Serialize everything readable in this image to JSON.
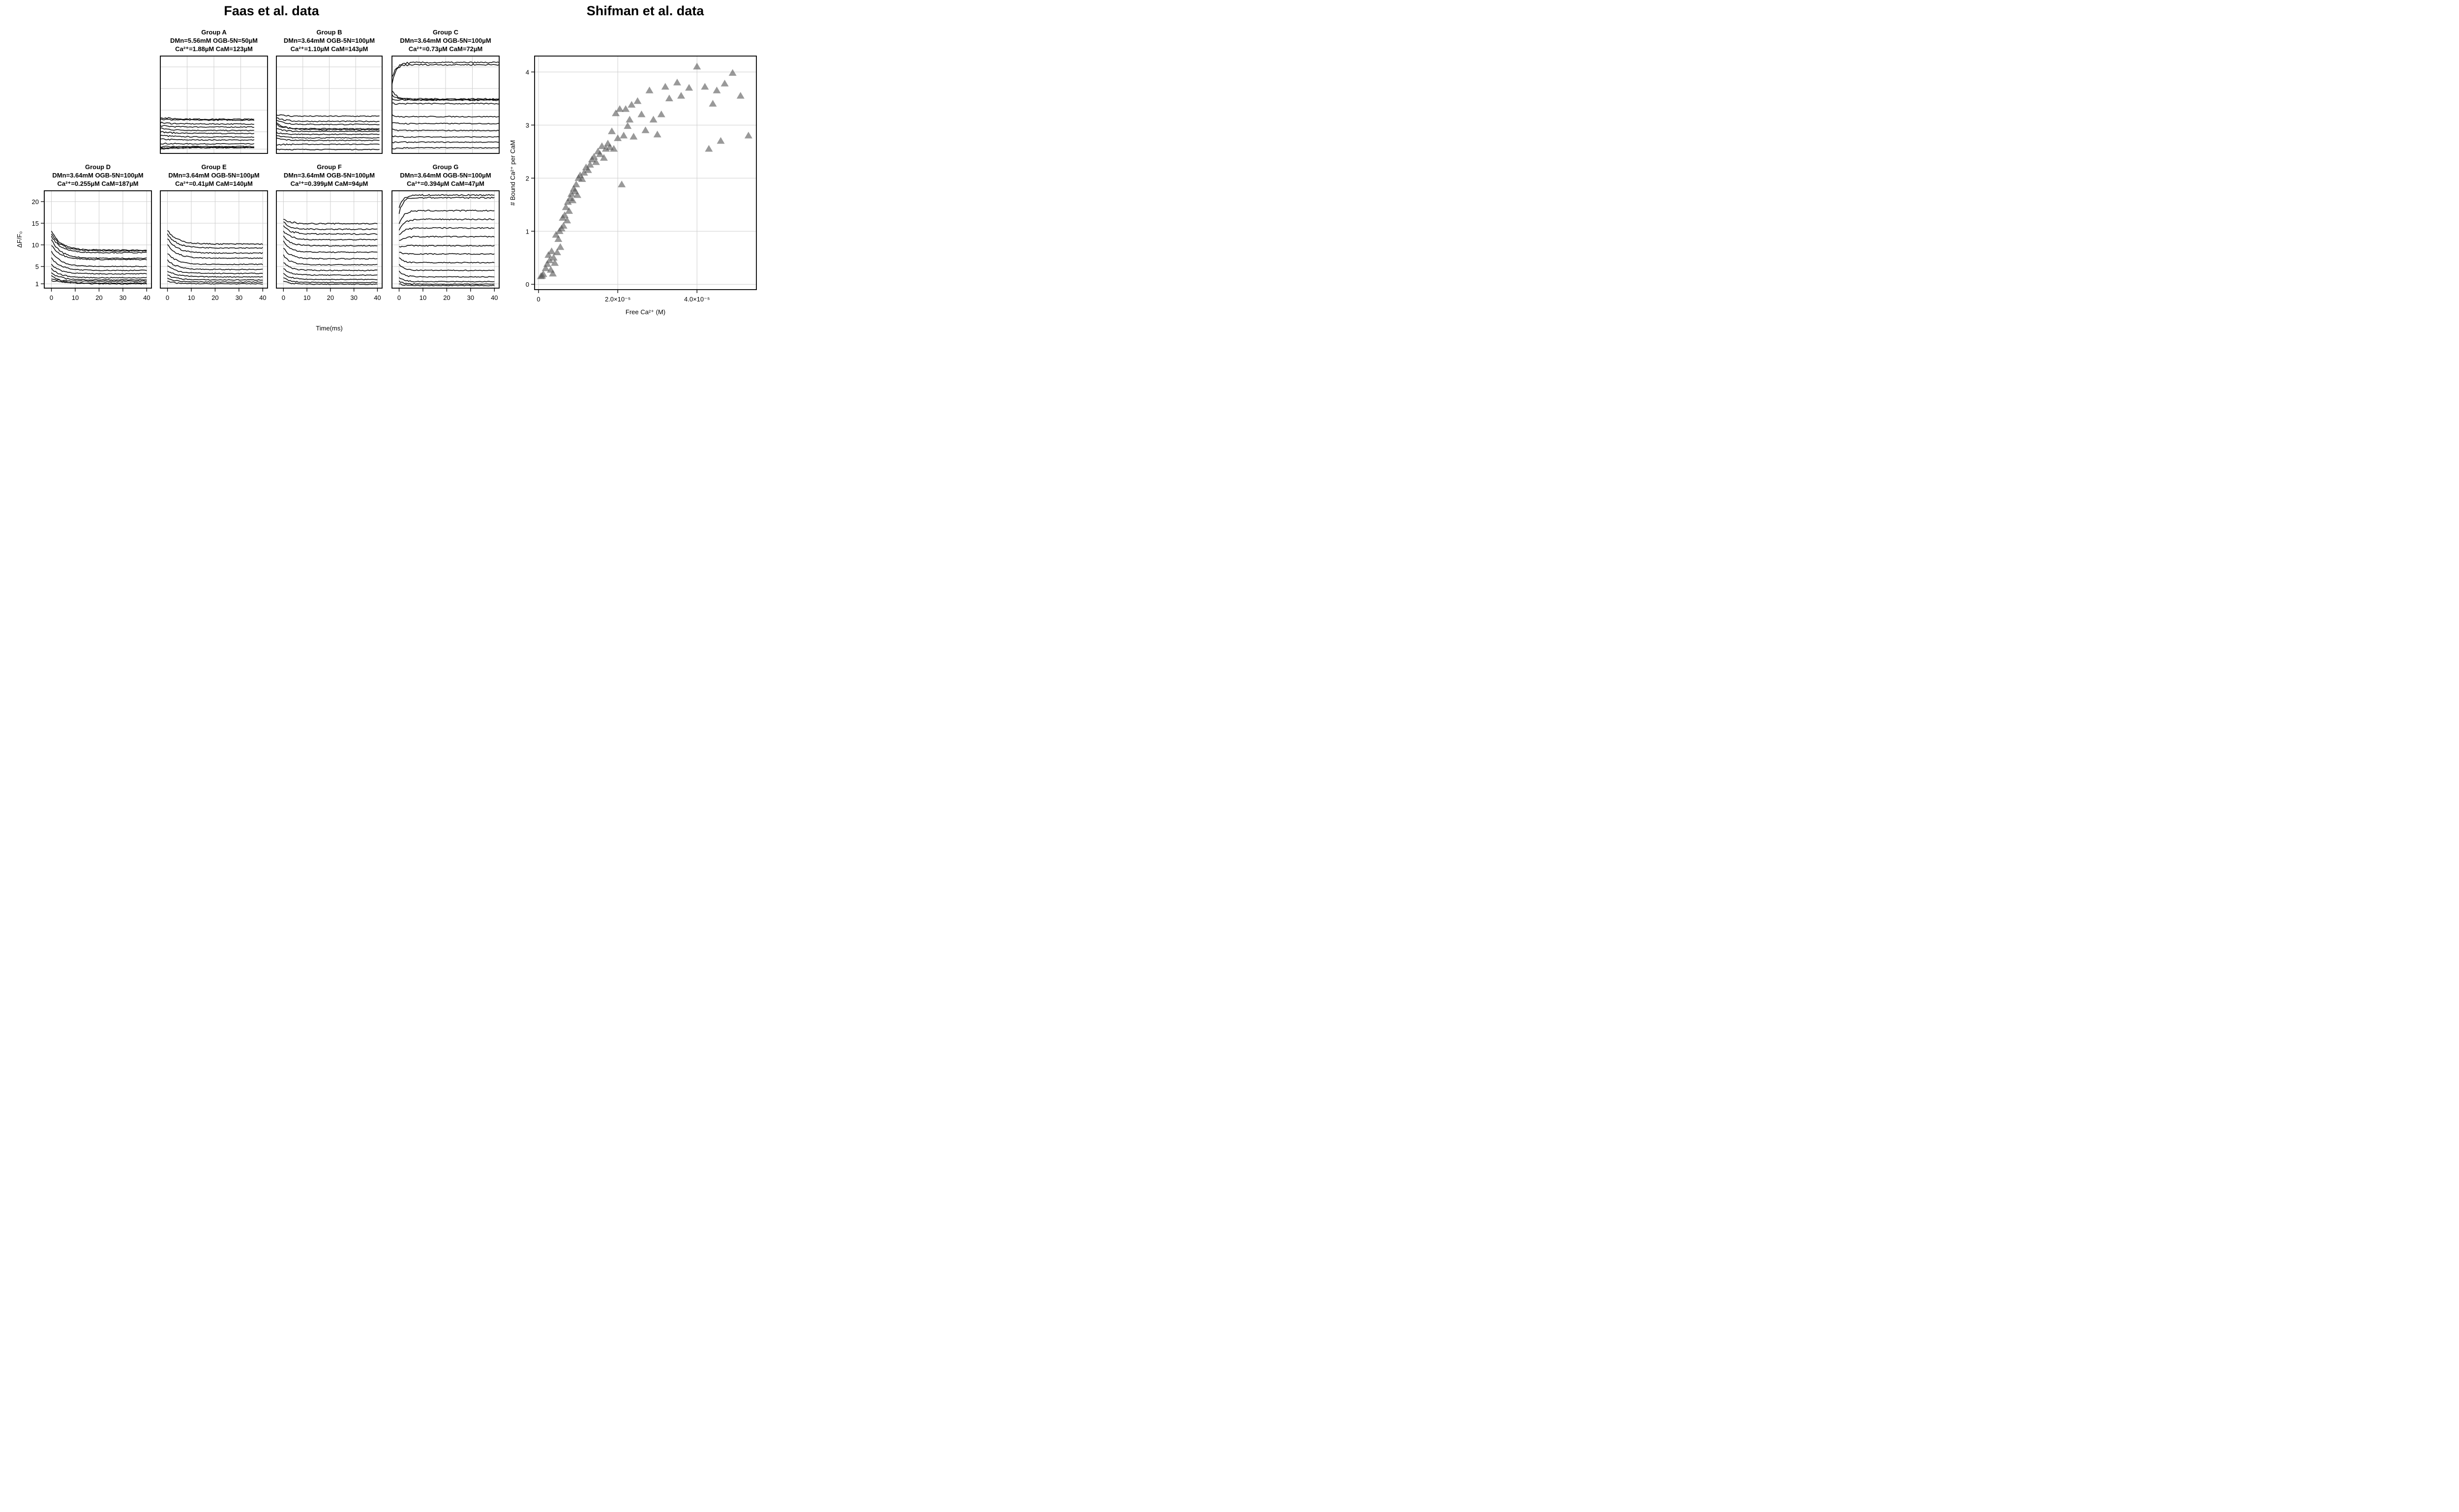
{
  "header": {
    "left_title": "Faas et al. data",
    "right_title": "Shifman et al. data"
  },
  "chart_data": [
    {
      "type": "line",
      "panel": "A",
      "title_lines": [
        "Group A",
        "DMn=5.56mM OGB-5N=50µM",
        "Ca²⁺=1.88µM CaM=123µM"
      ],
      "xlim": [
        0,
        40
      ],
      "ylim": [
        0,
        22.5
      ],
      "xticks": [
        0,
        10,
        20,
        30,
        40
      ],
      "yticks": [
        1,
        5,
        10,
        15,
        20
      ],
      "show_x_ticks": false,
      "show_y_ticks": false,
      "x_end": 35,
      "curves": [
        {
          "start": 1.0,
          "plateau": 1.3,
          "tau": 5
        },
        {
          "start": 1.2,
          "plateau": 1.4,
          "tau": 5
        },
        {
          "start": 1.5,
          "plateau": 1.6,
          "tau": 5
        },
        {
          "start": 2.3,
          "plateau": 2.2,
          "tau": 5
        },
        {
          "start": 3.3,
          "plateau": 3.1,
          "tau": 5
        },
        {
          "start": 4.2,
          "plateau": 3.8,
          "tau": 5
        },
        {
          "start": 5.0,
          "plateau": 4.6,
          "tau": 5
        },
        {
          "start": 5.8,
          "plateau": 5.3,
          "tau": 5
        },
        {
          "start": 6.4,
          "plateau": 6.1,
          "tau": 5
        },
        {
          "start": 7.1,
          "plateau": 6.8,
          "tau": 5
        },
        {
          "start": 7.9,
          "plateau": 7.7,
          "tau": 5
        },
        {
          "start": 8.3,
          "plateau": 7.9,
          "tau": 5
        }
      ]
    },
    {
      "type": "line",
      "panel": "B",
      "title_lines": [
        "Group B",
        "DMn=3.64mM OGB-5N=100µM",
        "Ca²⁺=1.10µM CaM=143µM"
      ],
      "xlim": [
        0,
        40
      ],
      "ylim": [
        0,
        22.5
      ],
      "xticks": [
        0,
        10,
        20,
        30,
        40
      ],
      "yticks": [
        1,
        5,
        10,
        15,
        20
      ],
      "show_x_ticks": false,
      "show_y_ticks": false,
      "x_end": 39,
      "curves": [
        {
          "start": 1.0,
          "plateau": 0.9,
          "tau": 3
        },
        {
          "start": 2.0,
          "plateau": 2.1,
          "tau": 3
        },
        {
          "start": 3.5,
          "plateau": 3.0,
          "tau": 3
        },
        {
          "start": 4.1,
          "plateau": 3.6,
          "tau": 3
        },
        {
          "start": 4.8,
          "plateau": 4.4,
          "tau": 3
        },
        {
          "start": 5.7,
          "plateau": 5.1,
          "tau": 3
        },
        {
          "start": 6.6,
          "plateau": 5.7,
          "tau": 3
        },
        {
          "start": 7.2,
          "plateau": 5.5,
          "tau": 3
        },
        {
          "start": 7.8,
          "plateau": 6.7,
          "tau": 3
        },
        {
          "start": 8.3,
          "plateau": 7.4,
          "tau": 3
        },
        {
          "start": 9.0,
          "plateau": 8.6,
          "tau": 3
        }
      ]
    },
    {
      "type": "line",
      "panel": "C",
      "title_lines": [
        "Group C",
        "DMn=3.64mM OGB-5N=100µM",
        "Ca²⁺=0.73µM CaM=72µM"
      ],
      "xlim": [
        0,
        40
      ],
      "ylim": [
        0,
        22.5
      ],
      "xticks": [
        0,
        10,
        20,
        30,
        40
      ],
      "yticks": [
        1,
        5,
        10,
        15,
        20
      ],
      "show_x_ticks": false,
      "show_y_ticks": false,
      "x_end": 40,
      "curves": [
        {
          "start": 1.0,
          "plateau": 1.3,
          "tau": 2
        },
        {
          "start": 2.5,
          "plateau": 2.6,
          "tau": 2
        },
        {
          "start": 4.0,
          "plateau": 3.8,
          "tau": 2
        },
        {
          "start": 5.5,
          "plateau": 5.3,
          "tau": 2
        },
        {
          "start": 7.0,
          "plateau": 6.9,
          "tau": 2
        },
        {
          "start": 8.8,
          "plateau": 8.5,
          "tau": 2
        },
        {
          "start": 11.5,
          "plateau": 11.5,
          "tau": 2
        },
        {
          "start": 12.5,
          "plateau": 12.4,
          "tau": 2
        },
        {
          "start": 13.5,
          "plateau": 12.6,
          "tau": 2
        },
        {
          "start": 14.6,
          "plateau": 12.3,
          "tau": 2
        },
        {
          "start": 16.0,
          "plateau": 21.0,
          "tau": 1.5
        },
        {
          "start": 17.5,
          "plateau": 20.5,
          "tau": 1.5
        }
      ]
    },
    {
      "type": "line",
      "panel": "D",
      "title_lines": [
        "Group D",
        "DMn=3.64mM OGB-5N=100µM",
        "Ca²⁺=0.255µM CaM=187µM"
      ],
      "xlim": [
        -3,
        42
      ],
      "ylim": [
        0,
        22.5
      ],
      "xticks": [
        0,
        10,
        20,
        30,
        40
      ],
      "yticks": [
        1,
        5,
        10,
        15,
        20
      ],
      "ylabel": "ΔF/F₀",
      "show_x_ticks": true,
      "show_y_ticks": true,
      "x_end": 40,
      "curves": [
        {
          "start": 1.8,
          "plateau": 1.2,
          "tau": 4
        },
        {
          "start": 2.2,
          "plateau": 1.6,
          "tau": 4
        },
        {
          "start": 3.0,
          "plateau": 1.0,
          "tau": 4
        },
        {
          "start": 3.5,
          "plateau": 1.9,
          "tau": 4
        },
        {
          "start": 4.5,
          "plateau": 2.4,
          "tau": 4
        },
        {
          "start": 5.5,
          "plateau": 3.3,
          "tau": 4
        },
        {
          "start": 7.0,
          "plateau": 4.1,
          "tau": 4
        },
        {
          "start": 8.5,
          "plateau": 5.0,
          "tau": 4
        },
        {
          "start": 10.0,
          "plateau": 6.6,
          "tau": 4
        },
        {
          "start": 11.2,
          "plateau": 6.9,
          "tau": 4
        },
        {
          "start": 12.0,
          "plateau": 8.2,
          "tau": 4
        },
        {
          "start": 12.6,
          "plateau": 8.6,
          "tau": 4
        },
        {
          "start": 13.2,
          "plateau": 8.8,
          "tau": 4
        }
      ]
    },
    {
      "type": "line",
      "panel": "E",
      "title_lines": [
        "Group E",
        "DMn=3.64mM OGB-5N=100µM",
        "Ca²⁺=0.41µM CaM=140µM"
      ],
      "xlim": [
        -3,
        42
      ],
      "ylim": [
        0,
        22.5
      ],
      "xticks": [
        0,
        10,
        20,
        30,
        40
      ],
      "yticks": [
        1,
        5,
        10,
        15,
        20
      ],
      "show_x_ticks": true,
      "show_y_ticks": false,
      "x_end": 40,
      "curves": [
        {
          "start": 1.5,
          "plateau": 1.0,
          "tau": 4
        },
        {
          "start": 2.2,
          "plateau": 1.4,
          "tau": 4
        },
        {
          "start": 3.0,
          "plateau": 1.9,
          "tau": 4
        },
        {
          "start": 4.0,
          "plateau": 2.6,
          "tau": 4
        },
        {
          "start": 5.2,
          "plateau": 3.4,
          "tau": 4
        },
        {
          "start": 6.5,
          "plateau": 4.3,
          "tau": 4
        },
        {
          "start": 8.0,
          "plateau": 5.5,
          "tau": 4
        },
        {
          "start": 10.0,
          "plateau": 6.9,
          "tau": 4
        },
        {
          "start": 11.5,
          "plateau": 8.1,
          "tau": 4
        },
        {
          "start": 12.5,
          "plateau": 9.3,
          "tau": 4
        },
        {
          "start": 13.3,
          "plateau": 10.2,
          "tau": 4
        }
      ]
    },
    {
      "type": "line",
      "panel": "F",
      "title_lines": [
        "Group F",
        "DMn=3.64mM OGB-5N=100µM",
        "Ca²⁺=0.399µM CaM=94µM"
      ],
      "xlim": [
        -3,
        42
      ],
      "ylim": [
        0,
        22.5
      ],
      "xticks": [
        0,
        10,
        20,
        30,
        40
      ],
      "yticks": [
        1,
        5,
        10,
        15,
        20
      ],
      "xlabel": "Time(ms)",
      "show_x_ticks": true,
      "show_y_ticks": false,
      "x_end": 40,
      "curves": [
        {
          "start": 1.6,
          "plateau": 0.9,
          "tau": 3
        },
        {
          "start": 2.4,
          "plateau": 1.3,
          "tau": 3
        },
        {
          "start": 3.4,
          "plateau": 2.0,
          "tau": 3
        },
        {
          "start": 4.6,
          "plateau": 3.0,
          "tau": 3
        },
        {
          "start": 6.0,
          "plateau": 4.1,
          "tau": 3
        },
        {
          "start": 7.6,
          "plateau": 5.4,
          "tau": 3
        },
        {
          "start": 9.3,
          "plateau": 6.8,
          "tau": 3
        },
        {
          "start": 10.8,
          "plateau": 8.3,
          "tau": 3
        },
        {
          "start": 12.0,
          "plateau": 9.8,
          "tau": 3
        },
        {
          "start": 13.2,
          "plateau": 11.2,
          "tau": 3
        },
        {
          "start": 14.4,
          "plateau": 12.5,
          "tau": 3
        },
        {
          "start": 15.3,
          "plateau": 13.6,
          "tau": 3
        },
        {
          "start": 15.9,
          "plateau": 14.9,
          "tau": 3
        }
      ]
    },
    {
      "type": "line",
      "panel": "G",
      "title_lines": [
        "Group G",
        "DMn=3.64mM OGB-5N=100µM",
        "Ca²⁺=0.394µM CaM=47µM"
      ],
      "xlim": [
        -3,
        42
      ],
      "ylim": [
        0,
        22.5
      ],
      "xticks": [
        0,
        10,
        20,
        30,
        40
      ],
      "yticks": [
        1,
        5,
        10,
        15,
        20
      ],
      "show_x_ticks": true,
      "show_y_ticks": false,
      "x_end": 40,
      "curves": [
        {
          "start": 1.0,
          "plateau": 0.6,
          "tau": 2
        },
        {
          "start": 1.6,
          "plateau": 0.9,
          "tau": 2
        },
        {
          "start": 2.5,
          "plateau": 1.5,
          "tau": 2
        },
        {
          "start": 4.0,
          "plateau": 2.6,
          "tau": 2
        },
        {
          "start": 5.5,
          "plateau": 4.1,
          "tau": 2
        },
        {
          "start": 7.0,
          "plateau": 5.9,
          "tau": 2
        },
        {
          "start": 8.3,
          "plateau": 7.9,
          "tau": 2
        },
        {
          "start": 9.6,
          "plateau": 9.8,
          "tau": 2
        },
        {
          "start": 11.0,
          "plateau": 11.9,
          "tau": 2
        },
        {
          "start": 12.2,
          "plateau": 13.9,
          "tau": 2
        },
        {
          "start": 13.5,
          "plateau": 15.9,
          "tau": 2
        },
        {
          "start": 15.0,
          "plateau": 17.9,
          "tau": 2
        },
        {
          "start": 17.2,
          "plateau": 20.9,
          "tau": 1.5
        },
        {
          "start": 18.5,
          "plateau": 21.5,
          "tau": 1.5
        }
      ]
    },
    {
      "type": "scatter",
      "panel": "Shifman",
      "xlabel": "Free Ca²⁺ (M)",
      "ylabel": "# Bound Ca²⁺ per CaM",
      "xlim": [
        -1e-06,
        5.5e-05
      ],
      "ylim": [
        -0.1,
        4.3
      ],
      "xticks": [
        0,
        2e-05,
        4e-05
      ],
      "xtick_labels": [
        "0",
        "2.0×10⁻⁵",
        "4.0×10⁻⁵"
      ],
      "yticks": [
        0,
        1,
        2,
        3,
        4
      ],
      "marker": "triangle",
      "marker_color": "#555555",
      "marker_opacity": 0.6,
      "points": [
        [
          6e-07,
          0.15
        ],
        [
          9e-07,
          0.16
        ],
        [
          1.2e-06,
          0.19
        ],
        [
          1.8e-06,
          0.3
        ],
        [
          2.2e-06,
          0.38
        ],
        [
          2.5e-06,
          0.55
        ],
        [
          2.8e-06,
          0.45
        ],
        [
          3.1e-06,
          0.27
        ],
        [
          3.3e-06,
          0.62
        ],
        [
          3.6e-06,
          0.2
        ],
        [
          3.8e-06,
          0.5
        ],
        [
          4.1e-06,
          0.4
        ],
        [
          4.4e-06,
          0.93
        ],
        [
          4.7e-06,
          0.6
        ],
        [
          5e-06,
          0.85
        ],
        [
          5.3e-06,
          1.0
        ],
        [
          5.5e-06,
          0.7
        ],
        [
          5.8e-06,
          1.05
        ],
        [
          6.1e-06,
          1.25
        ],
        [
          6.3e-06,
          1.1
        ],
        [
          6.6e-06,
          1.3
        ],
        [
          6.9e-06,
          1.45
        ],
        [
          7.2e-06,
          1.2
        ],
        [
          7.4e-06,
          1.55
        ],
        [
          7.7e-06,
          1.38
        ],
        [
          8e-06,
          1.62
        ],
        [
          8.3e-06,
          1.7
        ],
        [
          8.6e-06,
          1.58
        ],
        [
          8.9e-06,
          1.8
        ],
        [
          9.2e-06,
          1.75
        ],
        [
          9.5e-06,
          1.88
        ],
        [
          9.8e-06,
          1.68
        ],
        [
          1.01e-05,
          2.0
        ],
        [
          1.05e-05,
          2.05
        ],
        [
          1.1e-05,
          1.98
        ],
        [
          1.15e-05,
          2.1
        ],
        [
          1.2e-05,
          2.2
        ],
        [
          1.25e-05,
          2.15
        ],
        [
          1.3e-05,
          2.25
        ],
        [
          1.35e-05,
          2.35
        ],
        [
          1.4e-05,
          2.4
        ],
        [
          1.45e-05,
          2.3
        ],
        [
          1.5e-05,
          2.5
        ],
        [
          1.55e-05,
          2.45
        ],
        [
          1.6e-05,
          2.6
        ],
        [
          1.65e-05,
          2.38
        ],
        [
          1.7e-05,
          2.55
        ],
        [
          1.75e-05,
          2.65
        ],
        [
          1.8e-05,
          2.58
        ],
        [
          1.85e-05,
          2.88
        ],
        [
          1.9e-05,
          2.55
        ],
        [
          1.95e-05,
          3.22
        ],
        [
          2e-05,
          2.75
        ],
        [
          2.05e-05,
          3.3
        ],
        [
          2.1e-05,
          1.88
        ],
        [
          2.15e-05,
          2.8
        ],
        [
          2.2e-05,
          3.3
        ],
        [
          2.25e-05,
          2.98
        ],
        [
          2.3e-05,
          3.1
        ],
        [
          2.35e-05,
          3.38
        ],
        [
          2.4e-05,
          2.78
        ],
        [
          2.5e-05,
          3.45
        ],
        [
          2.6e-05,
          3.2
        ],
        [
          2.7e-05,
          2.9
        ],
        [
          2.8e-05,
          3.65
        ],
        [
          2.9e-05,
          3.1
        ],
        [
          3e-05,
          2.82
        ],
        [
          3.1e-05,
          3.2
        ],
        [
          3.2e-05,
          3.72
        ],
        [
          3.3e-05,
          3.5
        ],
        [
          3.5e-05,
          3.8
        ],
        [
          3.6e-05,
          3.55
        ],
        [
          3.8e-05,
          3.7
        ],
        [
          4e-05,
          4.1
        ],
        [
          4.2e-05,
          3.72
        ],
        [
          4.3e-05,
          2.55
        ],
        [
          4.4e-05,
          3.4
        ],
        [
          4.5e-05,
          3.65
        ],
        [
          4.6e-05,
          2.7
        ],
        [
          4.7e-05,
          3.78
        ],
        [
          4.9e-05,
          3.98
        ],
        [
          5.1e-05,
          3.55
        ],
        [
          5.3e-05,
          2.8
        ]
      ]
    }
  ]
}
